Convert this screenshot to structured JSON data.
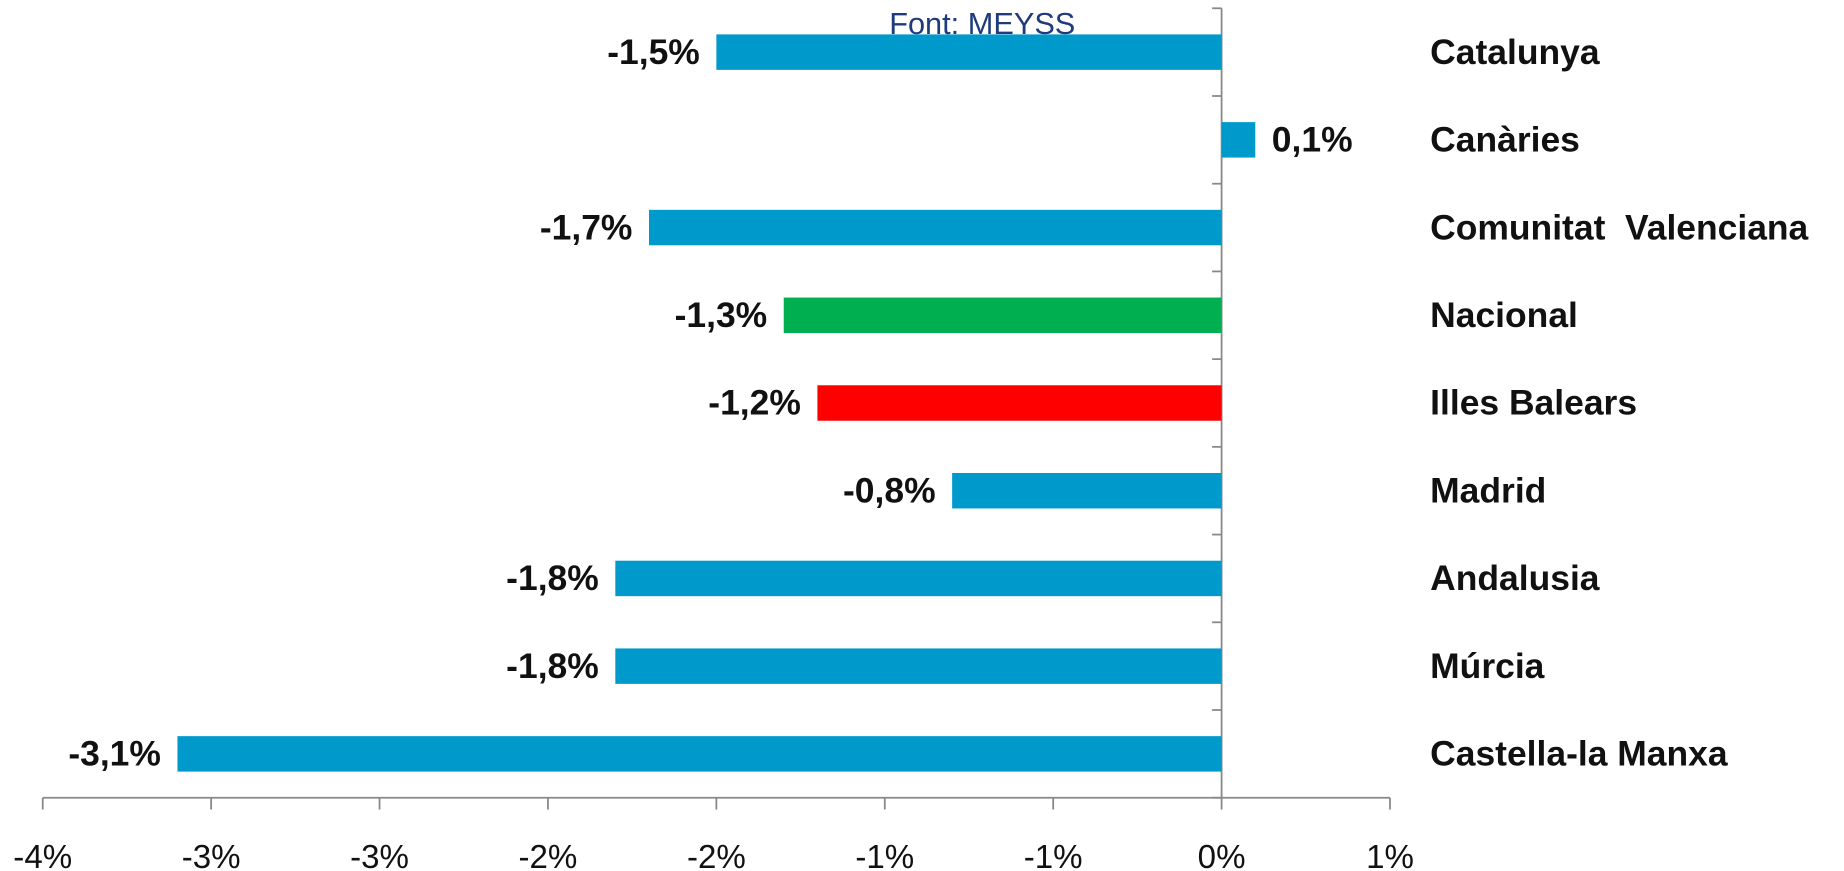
{
  "chart_data": {
    "type": "bar",
    "orientation": "horizontal",
    "source": "Font: MEYSS",
    "categories": [
      "Catalunya",
      "Canàries",
      "Comunitat  Valenciana",
      "Nacional",
      "Illes Balears",
      "Madrid",
      "Andalusia",
      "Múrcia",
      "Castella-la Manxa"
    ],
    "values": [
      -1.5,
      0.1,
      -1.7,
      -1.3,
      -1.2,
      -0.8,
      -1.8,
      -1.8,
      -3.1
    ],
    "value_labels": [
      "-1,5%",
      "0,1%",
      "-1,7%",
      "-1,3%",
      "-1,2%",
      "-0,8%",
      "-1,8%",
      "-1,8%",
      "-3,1%"
    ],
    "colors": [
      "#0099cc",
      "#0099cc",
      "#0099cc",
      "#00b050",
      "#ff0000",
      "#0099cc",
      "#0099cc",
      "#0099cc",
      "#0099cc"
    ],
    "xlim": [
      -3.5,
      0.5
    ],
    "xticks": [
      {
        "value": -3.5,
        "label": "-4%"
      },
      {
        "value": -3,
        "label": "-3%"
      },
      {
        "value": -2.5,
        "label": "-3%"
      },
      {
        "value": -2,
        "label": "-2%"
      },
      {
        "value": -1.5,
        "label": "-2%"
      },
      {
        "value": -1,
        "label": "-1%"
      },
      {
        "value": -0.5,
        "label": "-1%"
      },
      {
        "value": 0,
        "label": "0%"
      },
      {
        "value": 0.5,
        "label": "1%"
      }
    ],
    "grid": false
  }
}
